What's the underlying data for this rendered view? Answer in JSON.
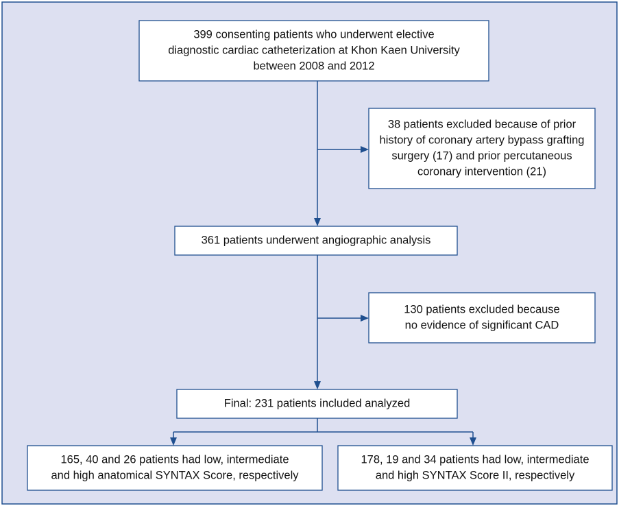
{
  "nodes": [
    {
      "lines": [
        "399 consenting patients who underwent elective",
        "diagnostic cardiac catheterization at Khon Kaen University",
        "between 2008 and 2012"
      ]
    },
    {
      "lines": [
        "38 patients excluded because of prior",
        "history of coronary artery bypass grafting",
        "surgery (17) and prior percutaneous",
        "coronary intervention (21)"
      ]
    },
    {
      "lines": [
        "361 patients underwent angiographic analysis"
      ]
    },
    {
      "lines": [
        "130 patients excluded because",
        "no evidence of significant CAD"
      ]
    },
    {
      "lines": [
        "Final: 231 patients included analyzed"
      ]
    },
    {
      "lines": [
        "165, 40 and 26 patients had low, intermediate",
        "and high anatomical SYNTAX Score, respectively"
      ]
    },
    {
      "lines": [
        "178, 19 and 34 patients had low, intermediate",
        "and high SYNTAX Score II, respectively"
      ]
    }
  ]
}
